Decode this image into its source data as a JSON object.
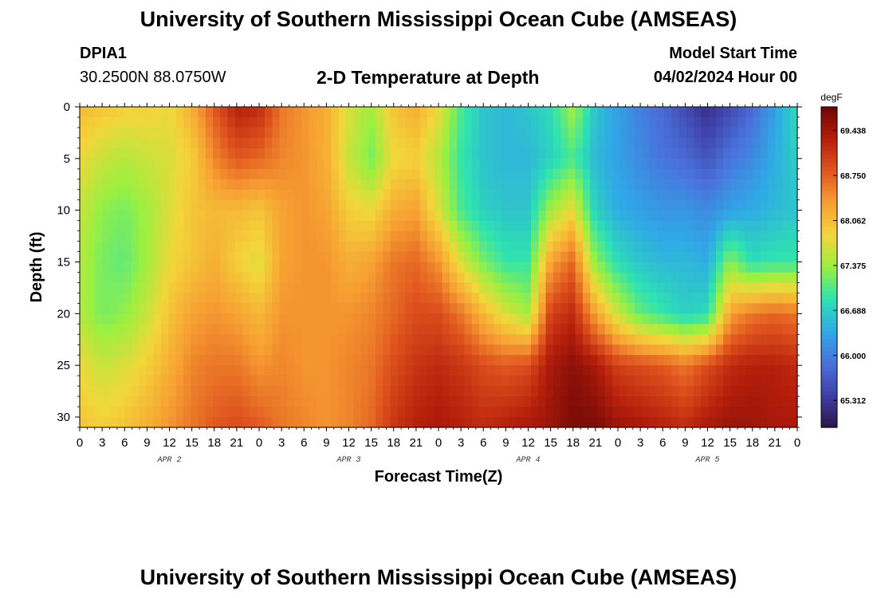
{
  "header": {
    "title": "University of Southern Mississippi Ocean Cube (AMSEAS)",
    "station_id": "DPIA1",
    "station_coords": "30.2500N  88.0750W",
    "subtitle": "2-D Temperature at Depth",
    "model_start_label": "Model Start Time",
    "model_start_value": "04/02/2024 Hour 00"
  },
  "footer": {
    "title": "University of Southern Mississippi Ocean Cube (AMSEAS)"
  },
  "chart_data": {
    "type": "heatmap",
    "title": "2-D Temperature at Depth",
    "xlabel": "Forecast Time(Z)",
    "ylabel": "Depth (ft)",
    "x_range_hours": [
      0,
      96
    ],
    "y_range_ft": [
      0,
      31
    ],
    "x_tick_step_hours": 3,
    "x_tick_labels": [
      "0",
      "3",
      "6",
      "9",
      "12",
      "15",
      "18",
      "21",
      "0",
      "3",
      "6",
      "9",
      "12",
      "15",
      "18",
      "21",
      "0",
      "3",
      "6",
      "9",
      "12",
      "15",
      "18",
      "21",
      "0",
      "3",
      "6",
      "9",
      "12",
      "15",
      "18",
      "21",
      "0"
    ],
    "day_labels": [
      {
        "label": "APR 2",
        "hour": 12
      },
      {
        "label": "APR 3",
        "hour": 36
      },
      {
        "label": "APR 4",
        "hour": 60
      },
      {
        "label": "APR 5",
        "hour": 84
      }
    ],
    "y_ticks": [
      0,
      5,
      10,
      15,
      20,
      25,
      30
    ],
    "colorbar": {
      "unit": "degF",
      "min": 64.9,
      "max": 69.8,
      "tick_labels": [
        "69.438",
        "68.750",
        "68.062",
        "67.375",
        "66.688",
        "66.000",
        "65.312"
      ],
      "tick_values": [
        69.438,
        68.75,
        68.062,
        67.375,
        66.688,
        66.0,
        65.312
      ],
      "colors": [
        "#2d1647",
        "#3f3fa6",
        "#4a72dc",
        "#2fa9e6",
        "#2ee3b0",
        "#9af040",
        "#f3d63a",
        "#f7a033",
        "#e0551f",
        "#b51e0b",
        "#6d0707"
      ]
    },
    "depth_profiles": [
      {
        "hour": 0,
        "depths": [
          0,
          5,
          10,
          15,
          20,
          25,
          31
        ],
        "values": [
          68.1,
          67.8,
          67.6,
          67.5,
          67.5,
          67.8,
          68.0
        ]
      },
      {
        "hour": 3,
        "depths": [
          0,
          5,
          10,
          15,
          20,
          25,
          31
        ],
        "values": [
          68.0,
          67.6,
          67.3,
          67.2,
          67.2,
          67.6,
          67.9
        ]
      },
      {
        "hour": 6,
        "depths": [
          0,
          5,
          10,
          15,
          20,
          25,
          31
        ],
        "values": [
          67.9,
          67.5,
          67.2,
          67.1,
          67.3,
          67.7,
          68.0
        ]
      },
      {
        "hour": 9,
        "depths": [
          0,
          5,
          10,
          15,
          20,
          25,
          31
        ],
        "values": [
          67.9,
          67.6,
          67.4,
          67.4,
          67.6,
          67.9,
          68.2
        ]
      },
      {
        "hour": 12,
        "depths": [
          0,
          5,
          10,
          15,
          20,
          25,
          31
        ],
        "values": [
          67.8,
          67.7,
          67.7,
          67.8,
          68.0,
          68.2,
          68.4
        ]
      },
      {
        "hour": 15,
        "depths": [
          0,
          5,
          10,
          15,
          20,
          25,
          31
        ],
        "values": [
          68.2,
          67.9,
          68.0,
          68.0,
          68.3,
          68.5,
          68.6
        ]
      },
      {
        "hour": 18,
        "depths": [
          0,
          5,
          10,
          15,
          20,
          25,
          31
        ],
        "values": [
          68.8,
          68.5,
          68.1,
          68.2,
          68.4,
          68.6,
          68.8
        ]
      },
      {
        "hour": 21,
        "depths": [
          0,
          5,
          10,
          15,
          20,
          25,
          31
        ],
        "values": [
          69.3,
          68.8,
          68.1,
          67.9,
          68.3,
          68.6,
          68.9
        ]
      },
      {
        "hour": 24,
        "depths": [
          0,
          5,
          10,
          15,
          20,
          25,
          31
        ],
        "values": [
          69.2,
          68.7,
          68.0,
          67.7,
          68.1,
          68.4,
          68.8
        ]
      },
      {
        "hour": 27,
        "depths": [
          0,
          5,
          10,
          15,
          20,
          25,
          31
        ],
        "values": [
          68.6,
          68.5,
          68.3,
          68.3,
          68.4,
          68.5,
          68.6
        ]
      },
      {
        "hour": 30,
        "depths": [
          0,
          5,
          10,
          15,
          20,
          25,
          31
        ],
        "values": [
          68.4,
          68.4,
          68.4,
          68.4,
          68.4,
          68.4,
          68.5
        ]
      },
      {
        "hour": 33,
        "depths": [
          0,
          5,
          10,
          15,
          20,
          25,
          31
        ],
        "values": [
          68.2,
          68.2,
          68.3,
          68.4,
          68.4,
          68.4,
          68.4
        ]
      },
      {
        "hour": 36,
        "depths": [
          0,
          5,
          10,
          15,
          20,
          25,
          31
        ],
        "values": [
          67.7,
          67.6,
          67.9,
          68.2,
          68.4,
          68.5,
          68.5
        ]
      },
      {
        "hour": 39,
        "depths": [
          0,
          5,
          10,
          15,
          20,
          25,
          31
        ],
        "values": [
          67.4,
          67.2,
          67.8,
          68.3,
          68.5,
          68.6,
          68.7
        ]
      },
      {
        "hour": 42,
        "depths": [
          0,
          5,
          10,
          15,
          20,
          25,
          31
        ],
        "values": [
          68.0,
          67.8,
          68.2,
          68.6,
          68.7,
          68.9,
          69.1
        ]
      },
      {
        "hour": 45,
        "depths": [
          0,
          5,
          10,
          15,
          20,
          25,
          31
        ],
        "values": [
          68.2,
          67.9,
          68.3,
          68.7,
          68.9,
          69.1,
          69.3
        ]
      },
      {
        "hour": 48,
        "depths": [
          0,
          5,
          10,
          15,
          20,
          25,
          31
        ],
        "values": [
          67.8,
          67.5,
          67.7,
          68.4,
          68.9,
          69.2,
          69.4
        ]
      },
      {
        "hour": 51,
        "depths": [
          0,
          5,
          10,
          15,
          20,
          25,
          31
        ],
        "values": [
          67.0,
          66.9,
          67.0,
          67.7,
          68.6,
          69.1,
          69.3
        ]
      },
      {
        "hour": 54,
        "depths": [
          0,
          5,
          10,
          15,
          20,
          25,
          31
        ],
        "values": [
          66.6,
          66.6,
          66.7,
          67.2,
          68.1,
          68.9,
          69.2
        ]
      },
      {
        "hour": 57,
        "depths": [
          0,
          5,
          10,
          15,
          20,
          25,
          31
        ],
        "values": [
          66.5,
          66.5,
          66.6,
          66.9,
          67.7,
          68.8,
          69.3
        ]
      },
      {
        "hour": 60,
        "depths": [
          0,
          5,
          10,
          15,
          20,
          25,
          31
        ],
        "values": [
          66.6,
          66.5,
          66.6,
          66.9,
          67.4,
          68.9,
          69.4
        ]
      },
      {
        "hour": 63,
        "depths": [
          0,
          5,
          10,
          15,
          20,
          25,
          31
        ],
        "values": [
          66.8,
          66.7,
          67.4,
          68.3,
          69.0,
          69.4,
          69.5
        ]
      },
      {
        "hour": 66,
        "depths": [
          0,
          5,
          10,
          15,
          20,
          25,
          31
        ],
        "values": [
          67.4,
          67.0,
          67.8,
          68.7,
          69.2,
          69.6,
          69.7
        ]
      },
      {
        "hour": 69,
        "depths": [
          0,
          5,
          10,
          15,
          20,
          25,
          31
        ],
        "values": [
          66.6,
          66.5,
          66.7,
          67.3,
          68.3,
          69.4,
          69.7
        ]
      },
      {
        "hour": 72,
        "depths": [
          0,
          5,
          10,
          15,
          20,
          25,
          31
        ],
        "values": [
          66.3,
          66.3,
          66.4,
          66.8,
          67.6,
          69.0,
          69.5
        ]
      },
      {
        "hour": 75,
        "depths": [
          0,
          5,
          10,
          15,
          20,
          25,
          31
        ],
        "values": [
          66.0,
          66.1,
          66.3,
          66.6,
          67.1,
          68.9,
          69.4
        ]
      },
      {
        "hour": 78,
        "depths": [
          0,
          5,
          10,
          15,
          20,
          25,
          31
        ],
        "values": [
          65.8,
          65.9,
          66.2,
          66.5,
          66.9,
          68.8,
          69.3
        ]
      },
      {
        "hour": 81,
        "depths": [
          0,
          5,
          10,
          15,
          20,
          25,
          31
        ],
        "values": [
          65.5,
          65.8,
          66.2,
          66.5,
          66.7,
          68.6,
          69.2
        ]
      },
      {
        "hour": 84,
        "depths": [
          0,
          5,
          10,
          15,
          20,
          25,
          31
        ],
        "values": [
          65.2,
          65.6,
          66.1,
          66.4,
          66.8,
          68.9,
          69.4
        ]
      },
      {
        "hour": 87,
        "depths": [
          0,
          5,
          10,
          15,
          20,
          25,
          31
        ],
        "values": [
          65.5,
          65.9,
          66.3,
          67.3,
          68.3,
          69.2,
          69.5
        ]
      },
      {
        "hour": 90,
        "depths": [
          0,
          5,
          10,
          15,
          20,
          25,
          31
        ],
        "values": [
          65.8,
          66.1,
          66.4,
          66.8,
          68.6,
          69.3,
          69.5
        ]
      },
      {
        "hour": 93,
        "depths": [
          0,
          5,
          10,
          15,
          20,
          25,
          31
        ],
        "values": [
          66.3,
          66.4,
          66.5,
          66.9,
          68.7,
          69.3,
          69.4
        ]
      },
      {
        "hour": 96,
        "depths": [
          0,
          5,
          10,
          15,
          20,
          25,
          31
        ],
        "values": [
          66.8,
          66.7,
          66.6,
          66.9,
          68.6,
          69.2,
          69.4
        ]
      }
    ]
  }
}
